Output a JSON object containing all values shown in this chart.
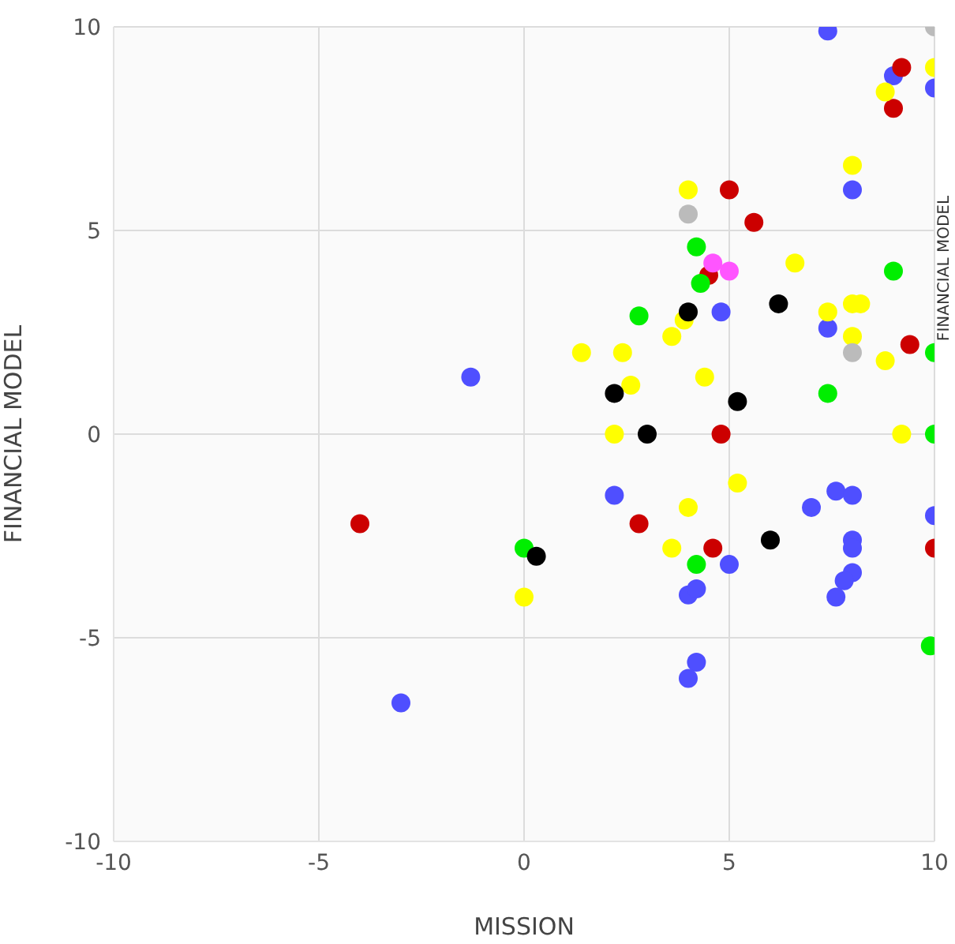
{
  "chart_data": {
    "type": "scatter",
    "xlabel": "MISSION",
    "ylabel": "FINANCIAL MODEL",
    "y2label": "FINANCIAL MODEL",
    "xlim": [
      -10,
      10
    ],
    "xticks": [
      -10,
      -5,
      0,
      5,
      10
    ],
    "ylim": [
      -10,
      10
    ],
    "yticks": [
      -10,
      -5,
      0,
      5,
      10
    ],
    "grid": true,
    "marker": "circle",
    "series": [
      {
        "color": "#4f4fff",
        "x": [
          7.4,
          9.0,
          10,
          8.0,
          -1.3,
          4.8,
          7.4,
          2.2,
          5.0,
          4.0,
          4.2,
          4.2,
          4.0,
          7.0,
          7.6,
          8.0,
          8.0,
          8.0,
          8.0,
          7.8,
          7.6,
          10,
          -3.0
        ],
        "values": [
          9.9,
          8.8,
          8.5,
          6.0,
          1.4,
          3.0,
          2.6,
          -1.5,
          -3.2,
          -3.95,
          -3.8,
          -5.6,
          -6.0,
          -1.8,
          -1.4,
          -1.5,
          -2.6,
          -2.8,
          -3.4,
          -3.6,
          -4.0,
          -2.0,
          -6.6
        ]
      },
      {
        "color": "#cc0000",
        "x": [
          9.2,
          9.0,
          5.0,
          5.6,
          4.5,
          9.4,
          4.8,
          2.8,
          4.6,
          10,
          -4.0
        ],
        "values": [
          9.0,
          8.0,
          6.0,
          5.2,
          3.9,
          2.2,
          0,
          -2.2,
          -2.8,
          -2.8,
          -2.2
        ]
      },
      {
        "color": "#ffff00",
        "x": [
          10,
          8.8,
          8.0,
          4.0,
          6.6,
          3.9,
          3.6,
          1.4,
          2.4,
          4.4,
          2.6,
          2.2,
          7.4,
          8.0,
          8.2,
          8.0,
          8.8,
          9.2,
          5.2,
          4.0,
          3.6,
          0
        ],
        "values": [
          9.0,
          8.4,
          6.6,
          6.0,
          4.2,
          2.8,
          2.4,
          2.0,
          2.0,
          1.4,
          1.2,
          0,
          3.0,
          3.2,
          3.2,
          2.4,
          1.8,
          0,
          -1.2,
          -1.8,
          -2.8,
          -4.0
        ]
      },
      {
        "color": "#00ee00",
        "x": [
          4.2,
          4.3,
          2.8,
          9.0,
          7.4,
          10,
          10,
          4.2,
          9.9,
          0
        ],
        "values": [
          4.6,
          3.7,
          2.9,
          4.0,
          1.0,
          2.0,
          0,
          -3.2,
          -5.2,
          -2.8
        ]
      },
      {
        "color": "#000000",
        "x": [
          4.0,
          6.2,
          2.2,
          5.2,
          3.0,
          6.0,
          0.3
        ],
        "values": [
          3.0,
          3.2,
          1.0,
          0.8,
          0,
          -2.6,
          -3.0
        ]
      },
      {
        "color": "#bbbbbb",
        "x": [
          4.0,
          10,
          8.0
        ],
        "values": [
          5.4,
          10,
          2.0
        ]
      },
      {
        "color": "#ff55ff",
        "x": [
          4.6,
          5.0
        ],
        "values": [
          4.2,
          4.0
        ]
      }
    ]
  }
}
